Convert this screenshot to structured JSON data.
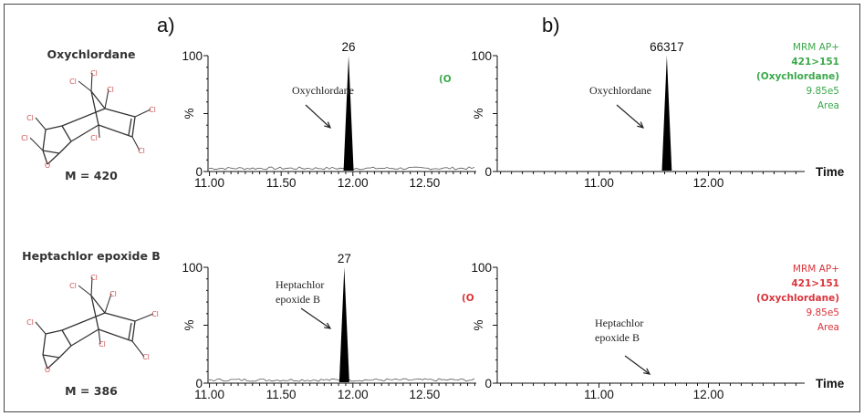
{
  "panel_labels": [
    "a)",
    "b)"
  ],
  "compounds": [
    {
      "name": "Oxychlordane",
      "mass": "M = 420",
      "atom_labels": [
        "Cl",
        "Cl",
        "Cl",
        "Cl",
        "Cl",
        "Cl",
        "Cl",
        "Cl",
        "O"
      ]
    },
    {
      "name": "Heptachlor epoxide B",
      "mass": "M = 386",
      "atom_labels": [
        "Cl",
        "Cl",
        "Cl",
        "Cl",
        "Cl",
        "Cl",
        "Cl",
        "O"
      ]
    }
  ],
  "colors": {
    "green": "#3aa84a",
    "red": "#d9343a",
    "peak": "#000000"
  },
  "chart_data": [
    {
      "type": "line",
      "panel": "a",
      "row": 1,
      "ylabel": "%",
      "ylim": [
        0,
        100
      ],
      "xlim": [
        10.99,
        12.86
      ],
      "xticks": [
        "11.00",
        "11.50",
        "12.00",
        "12.50"
      ],
      "yticks": [
        "0",
        "100"
      ],
      "peak": {
        "x": 11.97,
        "y": 100,
        "label": "26"
      },
      "baseline_noise": true,
      "annotation": [
        "Oxychlordane"
      ],
      "clipped_label": "(O",
      "clipped_color": "green"
    },
    {
      "type": "line",
      "panel": "a",
      "row": 2,
      "ylabel": "%",
      "ylim": [
        0,
        100
      ],
      "xlim": [
        10.99,
        12.86
      ],
      "xticks": [
        "11.00",
        "11.50",
        "12.00",
        "12.50"
      ],
      "yticks": [
        "0",
        "100"
      ],
      "peak": {
        "x": 11.94,
        "y": 100,
        "label": "27"
      },
      "baseline_noise": true,
      "annotation": [
        "Heptachlor",
        "epoxide B"
      ],
      "clipped_label": "(O",
      "clipped_color": "red"
    },
    {
      "type": "line",
      "panel": "b",
      "row": 1,
      "ylabel": "%",
      "xlabel": "Time",
      "ylim": [
        0,
        100
      ],
      "xlim": [
        10.07,
        12.88
      ],
      "xticks": [
        "11.00",
        "12.00"
      ],
      "yticks": [
        "0",
        "100"
      ],
      "peak": {
        "x": 11.62,
        "y": 100,
        "label": "66317"
      },
      "baseline_noise": false,
      "annotation": [
        "Oxychlordane"
      ],
      "side_label": {
        "lines": [
          "MRM AP+",
          "421>151",
          "(Oxychlordane)",
          "9.85e5",
          "Area"
        ],
        "color": "green"
      }
    },
    {
      "type": "line",
      "panel": "b",
      "row": 2,
      "ylabel": "%",
      "xlabel": "Time",
      "ylim": [
        0,
        100
      ],
      "xlim": [
        10.07,
        12.88
      ],
      "xticks": [
        "11.00",
        "12.00"
      ],
      "yticks": [
        "0",
        "100"
      ],
      "peak": null,
      "baseline_noise": false,
      "annotation": [
        "Heptachlor",
        "epoxide B"
      ],
      "side_label": {
        "lines": [
          "MRM AP+",
          "421>151",
          "(Oxychlordane)",
          "9.85e5",
          "Area"
        ],
        "color": "red"
      }
    }
  ]
}
